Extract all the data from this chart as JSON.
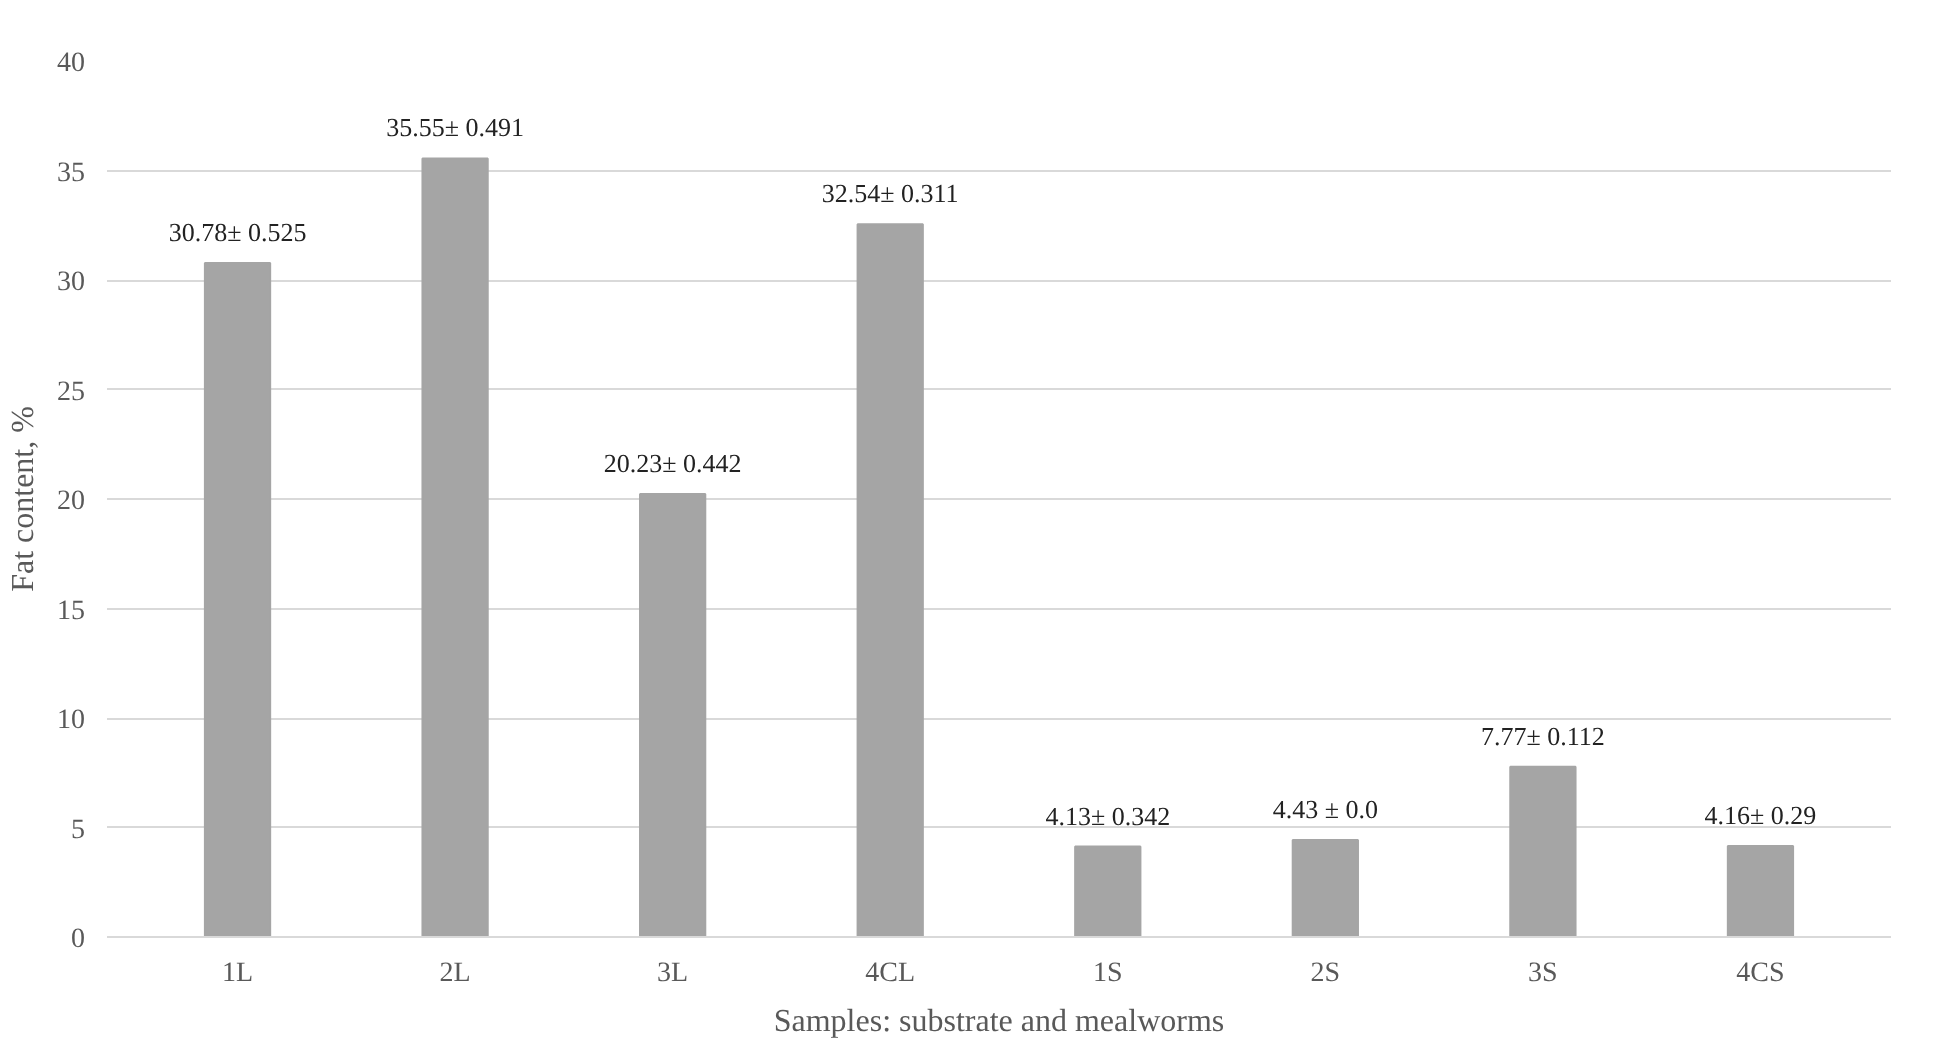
{
  "chart_data": {
    "type": "bar",
    "xlabel": "Samples: substrate and mealworms",
    "ylabel": "Fat content, %",
    "categories": [
      "1L",
      "2L",
      "3L",
      "4CL",
      "1S",
      "2S",
      "3S",
      "4CS"
    ],
    "values": [
      30.78,
      35.55,
      20.23,
      32.54,
      4.13,
      4.43,
      7.77,
      4.16
    ],
    "value_labels": [
      "30.78± 0.525",
      "35.55± 0.491",
      "20.23± 0.442",
      "32.54± 0.311",
      "4.13± 0.342",
      "4.43 ± 0.0",
      "7.77± 0.112",
      "4.16± 0.29"
    ],
    "color": "#a5a5a5",
    "ylim": [
      0,
      40
    ],
    "yticks": [
      0,
      5,
      10,
      15,
      20,
      25,
      30,
      35,
      40
    ],
    "grid": "y"
  }
}
